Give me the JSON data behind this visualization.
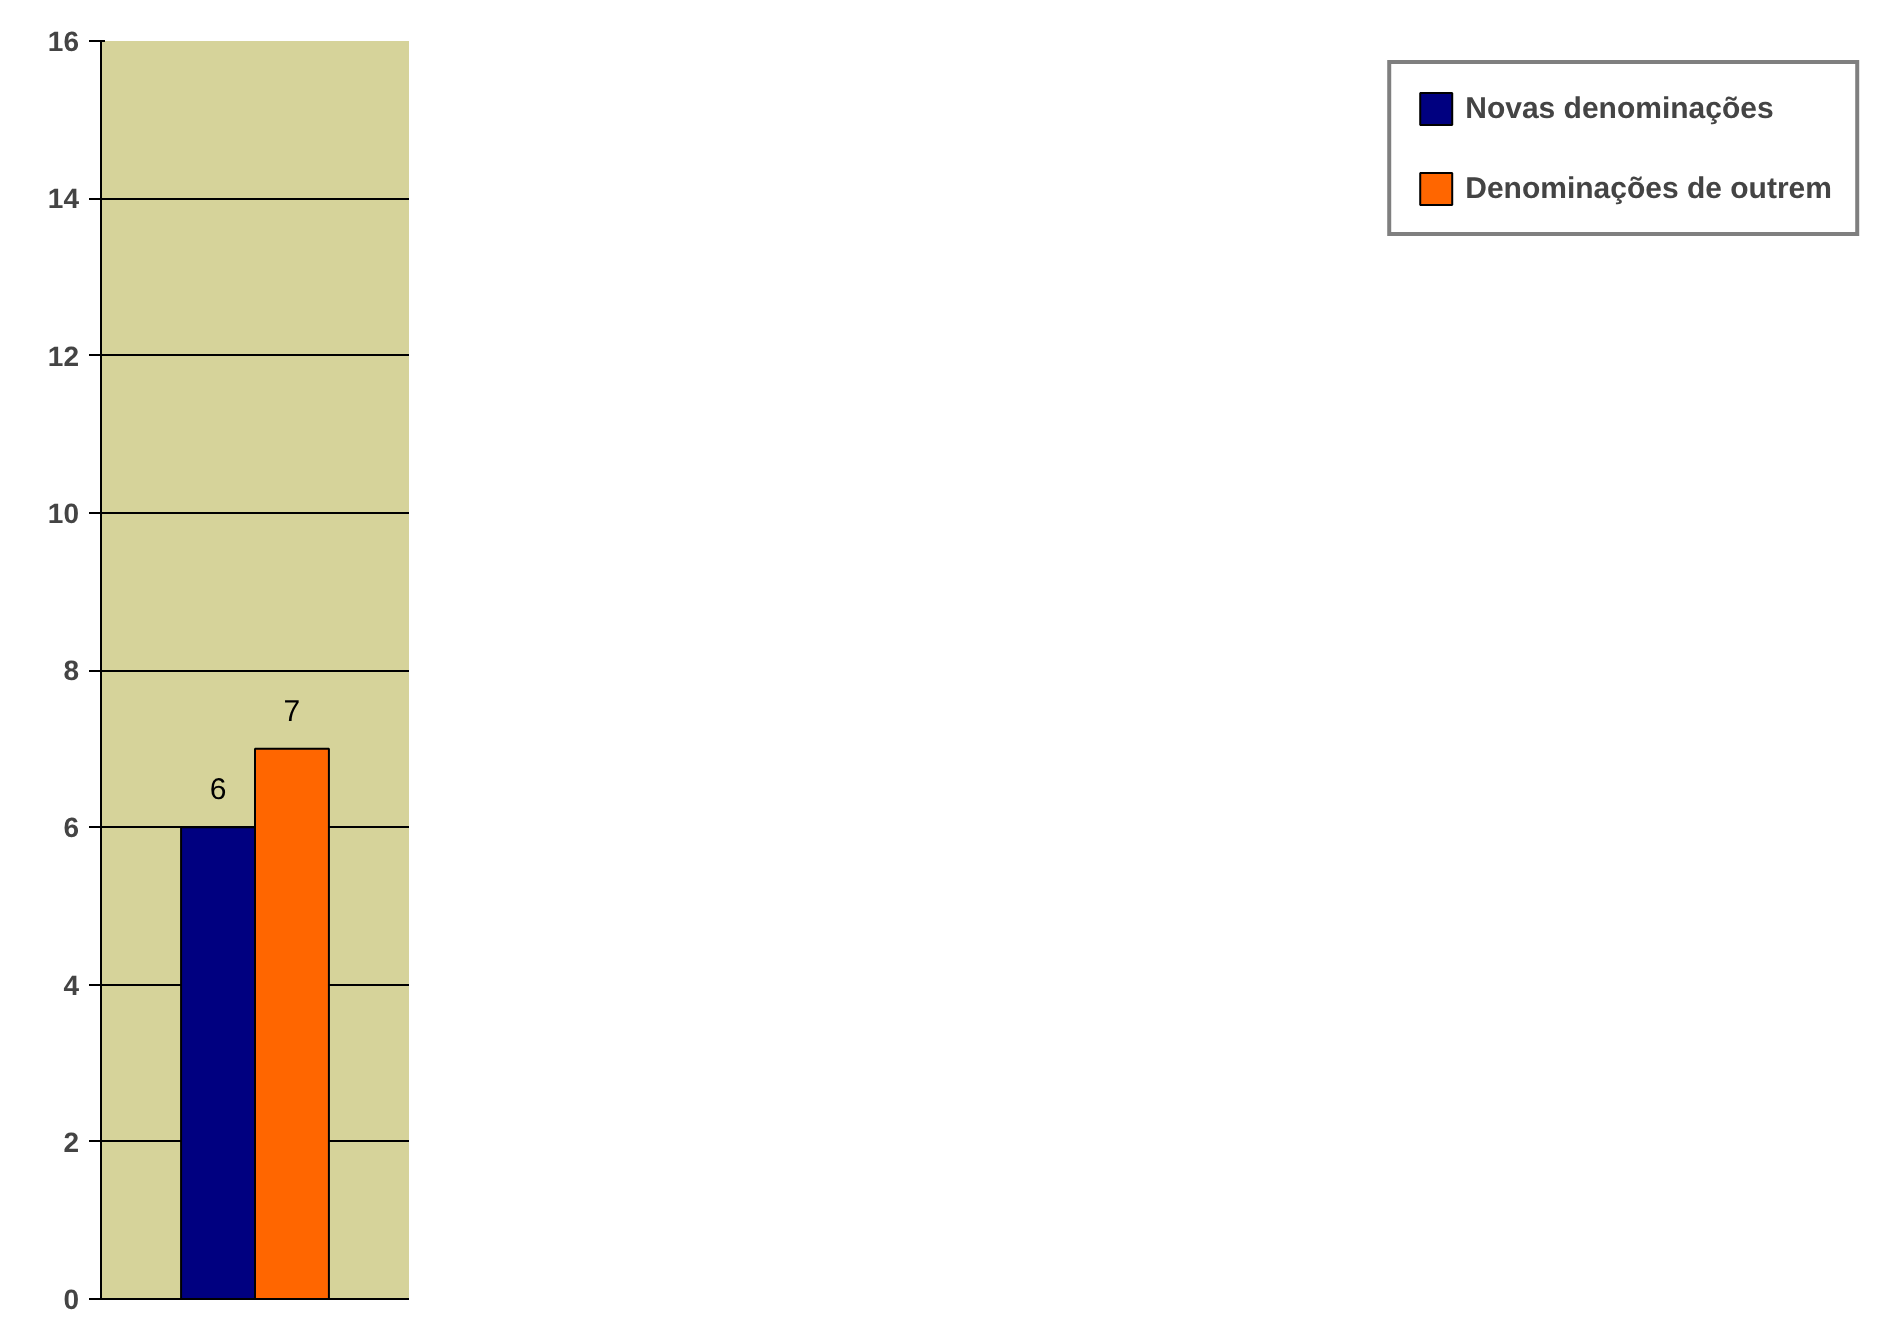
{
  "chart_data": {
    "type": "bar",
    "categories": [
      null
    ],
    "series": [
      {
        "name": "Novas denominações",
        "color": "#000080",
        "values": [
          6
        ]
      },
      {
        "name": "Denominações de outrem",
        "color": "#ff6600",
        "values": [
          7
        ]
      }
    ],
    "ylim": [
      0,
      16
    ],
    "yticks": [
      0,
      2,
      4,
      6,
      8,
      10,
      12,
      14,
      16
    ],
    "grid": "y",
    "legend": "right",
    "data_labels": true
  }
}
